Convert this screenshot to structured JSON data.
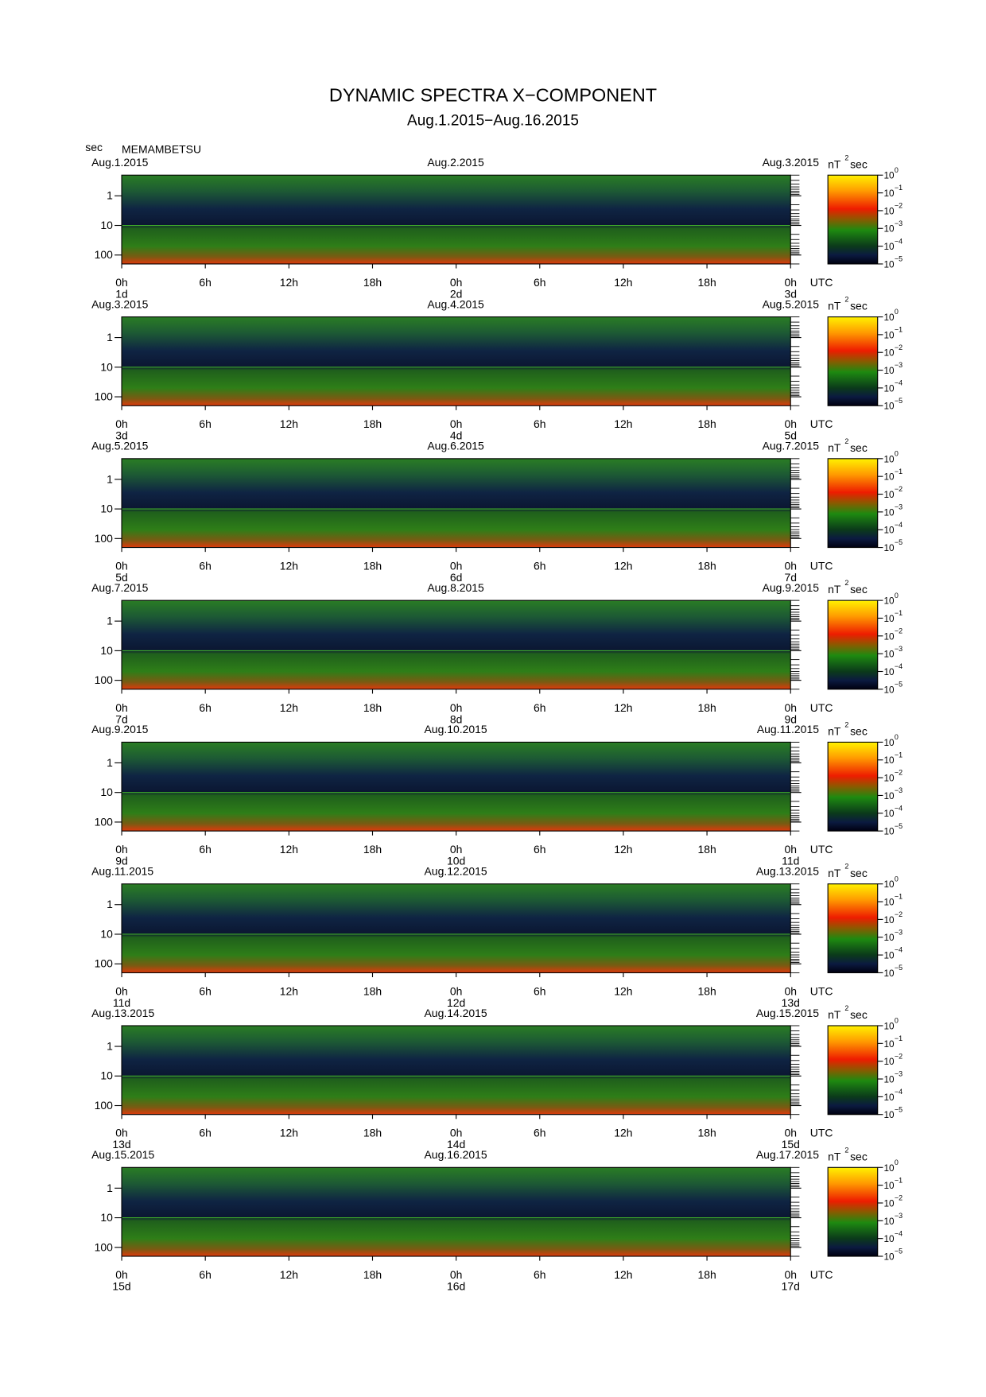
{
  "chart_data": {
    "type": "spectrogram",
    "title": "DYNAMIC SPECTRA X−COMPONENT",
    "subtitle": "Aug.1.2015−Aug.16.2015",
    "ylabel": "sec",
    "station": "MEMAMBETSU",
    "x_unit": "UTC",
    "log_y": true,
    "ylim": [
      0.2,
      200
    ],
    "yticks": [
      1,
      10,
      100
    ],
    "yminor": [
      0.2,
      0.3,
      0.4,
      0.5,
      0.6,
      0.7,
      0.8,
      0.9,
      2,
      3,
      4,
      5,
      6,
      7,
      8,
      9,
      20,
      30,
      40,
      50,
      60,
      70,
      80,
      90,
      200
    ],
    "xlim": [
      0,
      48
    ],
    "xticks": [
      {
        "value": 0,
        "label": "0h"
      },
      {
        "value": 6,
        "label": "6h"
      },
      {
        "value": 12,
        "label": "12h"
      },
      {
        "value": 18,
        "label": "18h"
      },
      {
        "value": 24,
        "label": "0h"
      },
      {
        "value": 30,
        "label": "6h"
      },
      {
        "value": 36,
        "label": "12h"
      },
      {
        "value": 42,
        "label": "18h"
      },
      {
        "value": 48,
        "label": "0h"
      }
    ],
    "colorbar": {
      "units": "nT",
      "units_exponent": "2",
      "units_tail": "sec",
      "lim": [
        1e-05,
        1
      ],
      "ticks": [
        {
          "value": 1,
          "label": "10",
          "exponent": "0"
        },
        {
          "value": 0.1,
          "label": "10",
          "exponent": "−1"
        },
        {
          "value": 0.01,
          "label": "10",
          "exponent": "−2"
        },
        {
          "value": 0.001,
          "label": "10",
          "exponent": "−3"
        },
        {
          "value": 0.0001,
          "label": "10",
          "exponent": "−4"
        },
        {
          "value": 1e-05,
          "label": "10",
          "exponent": "−5"
        }
      ]
    },
    "panels": [
      {
        "dates": [
          "Aug.1.2015",
          "Aug.2.2015",
          "Aug.3.2015"
        ],
        "days": [
          "1d",
          "2d",
          "3d"
        ]
      },
      {
        "dates": [
          "Aug.3.2015",
          "Aug.4.2015",
          "Aug.5.2015"
        ],
        "days": [
          "3d",
          "4d",
          "5d"
        ]
      },
      {
        "dates": [
          "Aug.5.2015",
          "Aug.6.2015",
          "Aug.7.2015"
        ],
        "days": [
          "5d",
          "6d",
          "7d"
        ]
      },
      {
        "dates": [
          "Aug.7.2015",
          "Aug.8.2015",
          "Aug.9.2015"
        ],
        "days": [
          "7d",
          "8d",
          "9d"
        ]
      },
      {
        "dates": [
          "Aug.9.2015",
          "Aug.10.2015",
          "Aug.11.2015"
        ],
        "days": [
          "9d",
          "10d",
          "11d"
        ]
      },
      {
        "dates": [
          "Aug.11.2015",
          "Aug.12.2015",
          "Aug.13.2015"
        ],
        "days": [
          "11d",
          "12d",
          "13d"
        ]
      },
      {
        "dates": [
          "Aug.13.2015",
          "Aug.14.2015",
          "Aug.15.2015"
        ],
        "days": [
          "13d",
          "14d",
          "15d"
        ]
      },
      {
        "dates": [
          "Aug.15.2015",
          "Aug.16.2015",
          "Aug.17.2015"
        ],
        "days": [
          "15d",
          "16d",
          "17d"
        ]
      }
    ]
  }
}
